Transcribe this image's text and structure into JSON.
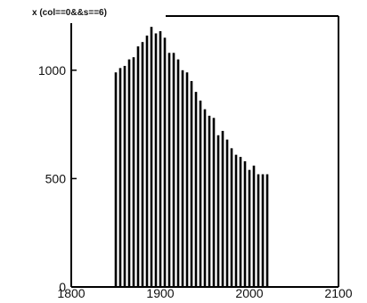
{
  "chart_data": {
    "type": "bar",
    "title": "x (col==0&&s==6)",
    "xlabel": "",
    "ylabel": "",
    "xlim": [
      1800,
      2100
    ],
    "ylim": [
      0,
      1250
    ],
    "grid": false,
    "legend": "none",
    "x_ticks": [
      1800,
      1900,
      2000,
      2100
    ],
    "x_tick_labels": [
      "1800",
      "1900",
      "2000",
      "2100"
    ],
    "y_ticks": [
      0,
      500,
      1000
    ],
    "y_tick_labels": [
      "0",
      "500",
      "1000"
    ],
    "bar_color": "#000000",
    "x": [
      1850,
      1855,
      1860,
      1865,
      1870,
      1875,
      1880,
      1885,
      1890,
      1895,
      1900,
      1905,
      1910,
      1915,
      1920,
      1925,
      1930,
      1935,
      1940,
      1945,
      1950,
      1955,
      1960,
      1965,
      1970,
      1975,
      1980,
      1985,
      1990,
      1995,
      2000,
      2005,
      2010,
      2015,
      2020
    ],
    "values": [
      990,
      1010,
      1020,
      1050,
      1060,
      1110,
      1130,
      1160,
      1200,
      1170,
      1180,
      1150,
      1080,
      1080,
      1050,
      1000,
      990,
      950,
      900,
      860,
      820,
      790,
      780,
      700,
      720,
      680,
      640,
      610,
      600,
      580,
      540,
      560,
      520,
      520,
      520
    ]
  }
}
